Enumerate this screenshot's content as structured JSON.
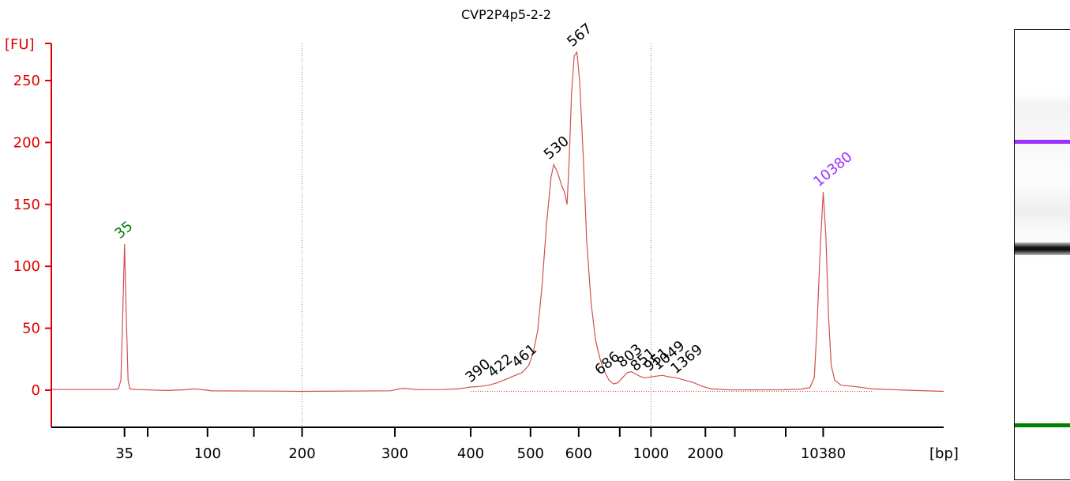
{
  "chart_data": {
    "type": "line",
    "title": "CVP2P4p5-2-2",
    "ylabel": "[FU]",
    "xlabel": "[bp]",
    "ylim": [
      -30,
      280
    ],
    "yticks": [
      0,
      50,
      100,
      150,
      200,
      250
    ],
    "xticks": [
      {
        "label": "35",
        "pos": 0.082
      },
      {
        "label": "",
        "pos": 0.108
      },
      {
        "label": "100",
        "pos": 0.175
      },
      {
        "label": "",
        "pos": 0.227
      },
      {
        "label": "200",
        "pos": 0.281
      },
      {
        "label": "300",
        "pos": 0.385
      },
      {
        "label": "400",
        "pos": 0.47
      },
      {
        "label": "500",
        "pos": 0.537
      },
      {
        "label": "600",
        "pos": 0.591
      },
      {
        "label": "",
        "pos": 0.637
      },
      {
        "label": "1000",
        "pos": 0.672
      },
      {
        "label": "2000",
        "pos": 0.733
      },
      {
        "label": "",
        "pos": 0.766
      },
      {
        "label": "",
        "pos": 0.823
      },
      {
        "label": "10380",
        "pos": 0.865
      }
    ],
    "vgrid": [
      0.281,
      0.672
    ],
    "series": [
      {
        "points": [
          [
            0.0,
            0.5
          ],
          [
            0.07,
            0.5
          ],
          [
            0.075,
            1
          ],
          [
            0.078,
            8
          ],
          [
            0.08,
            60
          ],
          [
            0.082,
            118
          ],
          [
            0.084,
            60
          ],
          [
            0.086,
            8
          ],
          [
            0.088,
            1
          ],
          [
            0.095,
            0.5
          ],
          [
            0.13,
            -0.3
          ],
          [
            0.15,
            0.3
          ],
          [
            0.16,
            1
          ],
          [
            0.17,
            0.3
          ],
          [
            0.18,
            -0.6
          ],
          [
            0.25,
            -0.8
          ],
          [
            0.28,
            -1
          ],
          [
            0.38,
            -0.5
          ],
          [
            0.39,
            1
          ],
          [
            0.395,
            1.5
          ],
          [
            0.41,
            0.4
          ],
          [
            0.44,
            0.5
          ],
          [
            0.455,
            1
          ],
          [
            0.465,
            2
          ],
          [
            0.47,
            2.5
          ],
          [
            0.48,
            3
          ],
          [
            0.49,
            4
          ],
          [
            0.5,
            6
          ],
          [
            0.51,
            9
          ],
          [
            0.52,
            12
          ],
          [
            0.527,
            14
          ],
          [
            0.53,
            16
          ],
          [
            0.535,
            20
          ],
          [
            0.54,
            30
          ],
          [
            0.545,
            48
          ],
          [
            0.55,
            85
          ],
          [
            0.555,
            135
          ],
          [
            0.56,
            172
          ],
          [
            0.563,
            182
          ],
          [
            0.566,
            178
          ],
          [
            0.569,
            172
          ],
          [
            0.572,
            165
          ],
          [
            0.575,
            160
          ],
          [
            0.578,
            150
          ],
          [
            0.58,
            180
          ],
          [
            0.583,
            240
          ],
          [
            0.586,
            270
          ],
          [
            0.589,
            273
          ],
          [
            0.592,
            250
          ],
          [
            0.596,
            190
          ],
          [
            0.6,
            120
          ],
          [
            0.605,
            70
          ],
          [
            0.61,
            40
          ],
          [
            0.615,
            25
          ],
          [
            0.62,
            15
          ],
          [
            0.625,
            8
          ],
          [
            0.63,
            5
          ],
          [
            0.635,
            6
          ],
          [
            0.64,
            10
          ],
          [
            0.645,
            14
          ],
          [
            0.65,
            15
          ],
          [
            0.655,
            13
          ],
          [
            0.66,
            11
          ],
          [
            0.665,
            10
          ],
          [
            0.675,
            11
          ],
          [
            0.685,
            12
          ],
          [
            0.69,
            11
          ],
          [
            0.7,
            10
          ],
          [
            0.71,
            8
          ],
          [
            0.72,
            6
          ],
          [
            0.73,
            3
          ],
          [
            0.74,
            1
          ],
          [
            0.76,
            0.2
          ],
          [
            0.82,
            0.3
          ],
          [
            0.84,
            0.8
          ],
          [
            0.85,
            2
          ],
          [
            0.855,
            10
          ],
          [
            0.858,
            50
          ],
          [
            0.862,
            120
          ],
          [
            0.865,
            160
          ],
          [
            0.868,
            125
          ],
          [
            0.871,
            60
          ],
          [
            0.874,
            20
          ],
          [
            0.878,
            8
          ],
          [
            0.885,
            4
          ],
          [
            0.9,
            3
          ],
          [
            0.92,
            1
          ],
          [
            0.95,
            0.2
          ],
          [
            1.0,
            -1
          ]
        ]
      }
    ],
    "peaks": [
      {
        "label": "35",
        "x": 0.082,
        "y": 118,
        "color": "#008000"
      },
      {
        "label": "390",
        "x": 0.475,
        "y": 2
      },
      {
        "label": "422",
        "x": 0.5,
        "y": 6
      },
      {
        "label": "461",
        "x": 0.527,
        "y": 14
      },
      {
        "label": "530",
        "x": 0.563,
        "y": 182
      },
      {
        "label": "567",
        "x": 0.589,
        "y": 273
      },
      {
        "label": "686",
        "x": 0.62,
        "y": 8
      },
      {
        "label": "803",
        "x": 0.645,
        "y": 14
      },
      {
        "label": "851",
        "x": 0.66,
        "y": 11
      },
      {
        "label": "951",
        "x": 0.675,
        "y": 11
      },
      {
        "label": "1049",
        "x": 0.685,
        "y": 12
      },
      {
        "label": "1369",
        "x": 0.705,
        "y": 9
      },
      {
        "label": "10380",
        "x": 0.865,
        "y": 160,
        "color": "#9b30ff"
      }
    ]
  },
  "gel": {
    "bands": [
      {
        "name": "upper-marker",
        "pos": 0.247,
        "color": "#9b30ff"
      },
      {
        "name": "main-band",
        "pos": 0.485,
        "color": "#111111"
      },
      {
        "name": "lower-marker",
        "pos": 0.877,
        "color": "#008000"
      }
    ]
  }
}
